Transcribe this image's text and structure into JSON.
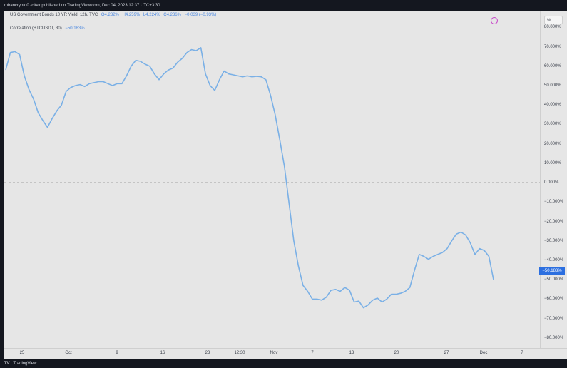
{
  "topbar": {
    "text": "mbancrypto0 -citex published on TradingView.com, Dec 04, 2023 12:37 UTC+3:30"
  },
  "header": {
    "symbol": "US Government Bonds 10 YR Yield, 12h, TVC",
    "open": "O4.232%",
    "high": "H4.259%",
    "low": "L4.224%",
    "close": "C4.236%",
    "change": "−0.039 (−0.93%)"
  },
  "indicator": {
    "label": "Correlation (BTCUSDT, 30)",
    "value": "−50.183%"
  },
  "controls": {
    "scale_label": "%"
  },
  "footer": {
    "brand": "TradingView"
  },
  "colors": {
    "line": "#7ab0e6",
    "background": "#e6e6e6",
    "accent": "#2c6fe0",
    "icon": "#c640c8"
  },
  "icons": {
    "settings": "compare-icon"
  },
  "price_label": "−50.183%",
  "chart_data": {
    "type": "line",
    "ylim": [
      -83,
      86
    ],
    "yticks": [
      "80.000%",
      "70.000%",
      "60.000%",
      "50.000%",
      "40.000%",
      "30.000%",
      "20.000%",
      "10.000%",
      "0.000%",
      "−10.000%",
      "−20.000%",
      "−30.000%",
      "−40.000%",
      "−50.000%",
      "−60.000%",
      "−70.000%",
      "−80.000%"
    ],
    "ytick_values": [
      80,
      70,
      60,
      50,
      40,
      30,
      20,
      10,
      0,
      -10,
      -20,
      -30,
      -40,
      -50,
      -60,
      -70,
      -80
    ],
    "xticks": [
      "25",
      "Oct",
      "9",
      "16",
      "23",
      "12:30",
      "Nov",
      "7",
      "13",
      "20",
      "27",
      "Dec",
      "7"
    ],
    "zero_line": true,
    "series": [
      {
        "values": [
          58,
          67,
          67.5,
          66,
          55,
          48,
          43,
          36,
          32,
          28.5,
          33,
          37,
          40,
          47,
          49,
          50,
          50.5,
          49.5,
          51,
          51.5,
          52,
          52,
          51,
          50,
          51,
          51,
          55,
          60,
          63,
          62.5,
          61,
          60,
          56,
          53,
          56,
          58,
          59,
          62,
          64,
          67,
          68.5,
          68,
          69.5,
          56,
          50,
          47.5,
          53,
          57.5,
          56,
          55.5,
          55,
          54.5,
          55,
          54.5,
          54.8,
          54.5,
          53,
          45,
          35,
          22,
          8,
          -11,
          -30,
          -43,
          -53,
          -56,
          -60,
          -60,
          -60.5,
          -59,
          -55.5,
          -55,
          -56,
          -54,
          -55.5,
          -61.5,
          -61,
          -64.5,
          -63,
          -60.5,
          -59.5,
          -61.5,
          -60,
          -57.5,
          -57.5,
          -57,
          -56,
          -54,
          -45,
          -37,
          -38,
          -39.5,
          -38,
          -37,
          -36,
          -34,
          -30,
          -26.5,
          -25.5,
          -27,
          -31,
          -37,
          -34,
          -35,
          -38,
          -50
        ]
      }
    ]
  }
}
